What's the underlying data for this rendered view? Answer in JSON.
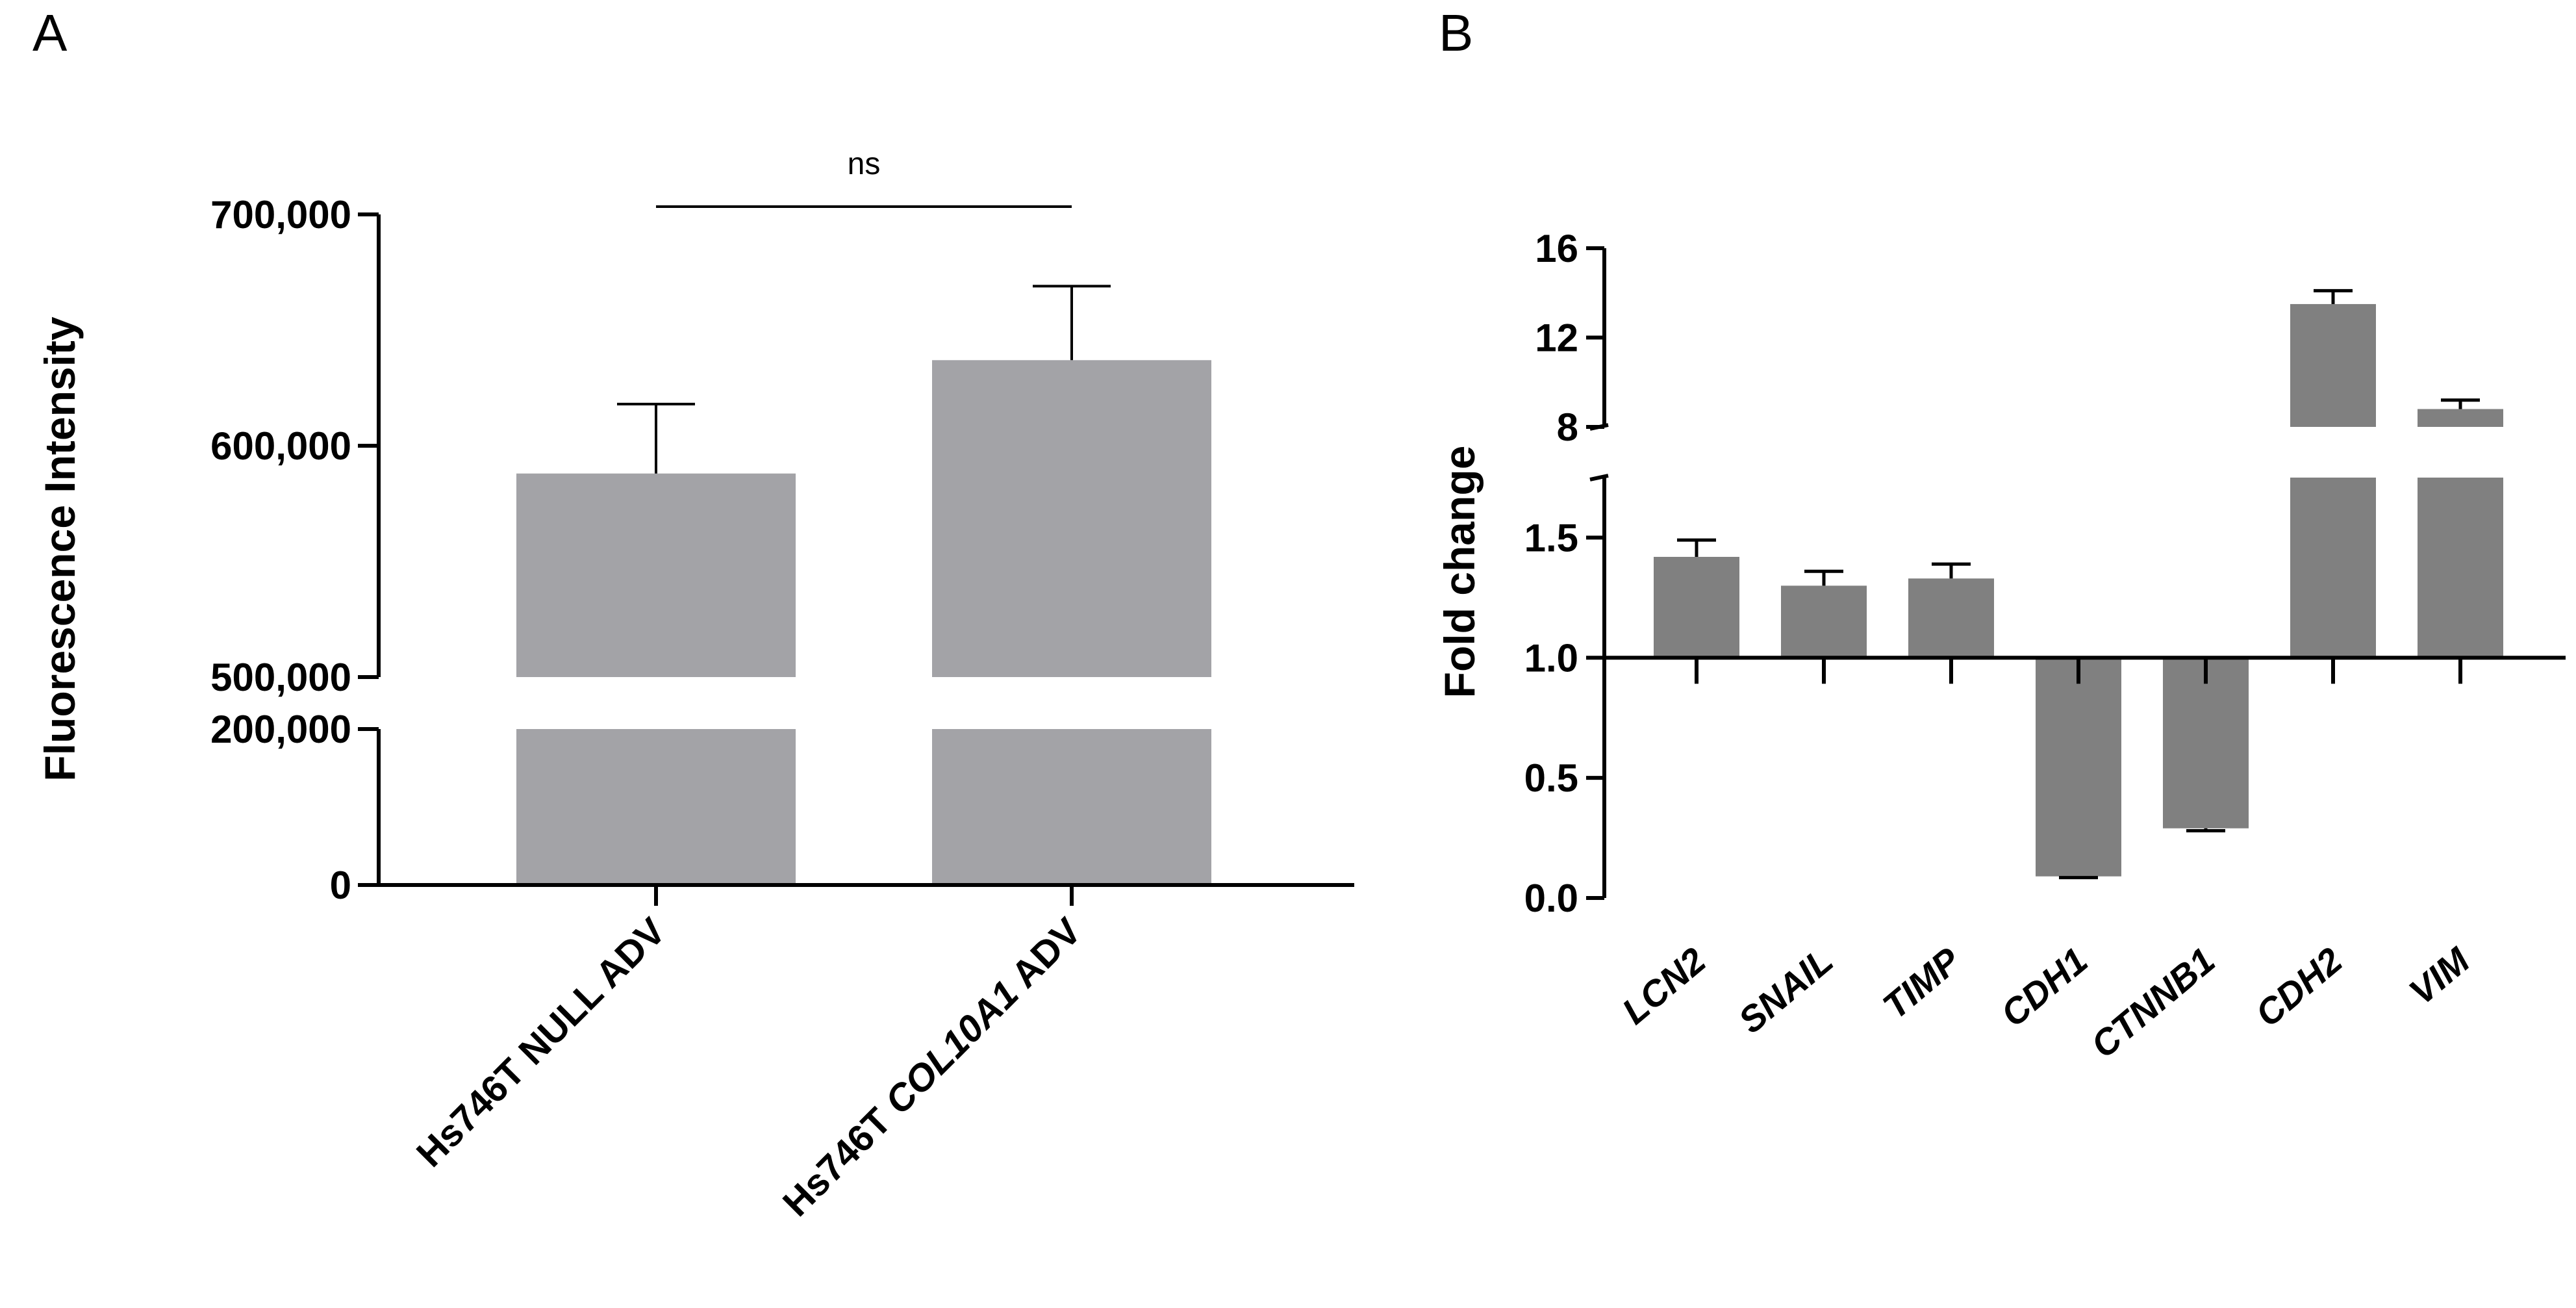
{
  "colors": {
    "barA": "#a3a3a7",
    "barB": "#808080",
    "axis": "#000000"
  },
  "chart_data": [
    {
      "panel": "A",
      "type": "bar",
      "title": "",
      "ylabel": "Fluorescence Intensity",
      "xlabel": "",
      "categories": [
        "Hs746T NULL ADV",
        "Hs746T COL10A1 ADV"
      ],
      "category_parts": [
        [
          {
            "t": "Hs746T NULL ADV",
            "i": false
          }
        ],
        [
          {
            "t": "Hs746T ",
            "i": false
          },
          {
            "t": "COL10A1",
            "i": true
          },
          {
            "t": " ADV",
            "i": false
          }
        ]
      ],
      "values": [
        588000,
        637000
      ],
      "errors": [
        30000,
        32000
      ],
      "axis_break": {
        "lower_range": [
          0,
          200000
        ],
        "upper_range": [
          500000,
          700000
        ]
      },
      "yticks_lower": [
        0,
        200000
      ],
      "yticks_upper": [
        500000,
        600000,
        700000
      ],
      "ytick_labels_lower": [
        "0",
        "200,000"
      ],
      "ytick_labels_upper": [
        "500,000",
        "600,000",
        "700,000"
      ],
      "significance": {
        "between": [
          "Hs746T NULL ADV",
          "Hs746T COL10A1 ADV"
        ],
        "label": "ns"
      }
    },
    {
      "panel": "B",
      "type": "bar",
      "title": "",
      "ylabel": "Fold change",
      "xlabel": "",
      "baseline": 1.0,
      "categories": [
        "LCN2",
        "SNAIL",
        "TIMP",
        "CDH1",
        "CTNNB1",
        "CDH2",
        "VIM"
      ],
      "values": [
        1.42,
        1.3,
        1.33,
        0.09,
        0.29,
        13.5,
        8.8
      ],
      "errors": [
        0.07,
        0.06,
        0.06,
        0.005,
        0.01,
        0.6,
        0.4
      ],
      "axis_break": {
        "lower_range": [
          0,
          1.75
        ],
        "upper_range": [
          8,
          16
        ]
      },
      "yticks_lower": [
        0.0,
        0.5,
        1.0,
        1.5
      ],
      "yticks_upper": [
        8,
        12,
        16
      ],
      "ytick_labels_lower": [
        "0.0",
        "0.5",
        "1.0",
        "1.5"
      ],
      "ytick_labels_upper": [
        "8",
        "12",
        "16"
      ]
    }
  ]
}
